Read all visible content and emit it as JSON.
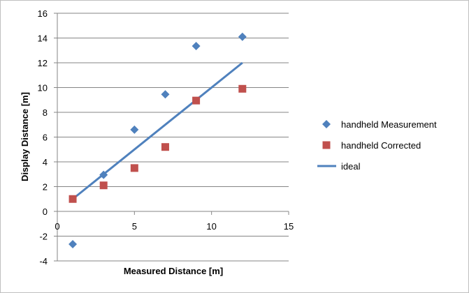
{
  "chart_data": {
    "type": "scatter",
    "title": "",
    "xlabel": "Measured Distance [m]",
    "ylabel": "Display Distance [m]",
    "xlim": [
      0,
      15
    ],
    "ylim": [
      -4,
      16
    ],
    "x_ticks": [
      "0",
      "5",
      "10",
      "15"
    ],
    "y_ticks": [
      "-4",
      "-2",
      "0",
      "2",
      "4",
      "6",
      "8",
      "10",
      "12",
      "14",
      "16"
    ],
    "grid": "horizontal",
    "legend_position": "right",
    "series": [
      {
        "name": "handheld Measurement",
        "marker": "diamond",
        "color": "#4f81bd",
        "points": [
          [
            1,
            -2.65
          ],
          [
            3,
            2.95
          ],
          [
            5,
            6.6
          ],
          [
            7,
            9.45
          ],
          [
            9,
            13.35
          ],
          [
            12,
            14.1
          ]
        ]
      },
      {
        "name": "handheld Corrected",
        "marker": "square",
        "color": "#c0504d",
        "points": [
          [
            1,
            1.0
          ],
          [
            3,
            2.1
          ],
          [
            5,
            3.5
          ],
          [
            7,
            5.2
          ],
          [
            9,
            8.95
          ],
          [
            12,
            9.9
          ]
        ]
      },
      {
        "name": "ideal",
        "marker": "line",
        "color": "#4f81bd",
        "points": [
          [
            1,
            1
          ],
          [
            12,
            12
          ]
        ]
      }
    ]
  }
}
